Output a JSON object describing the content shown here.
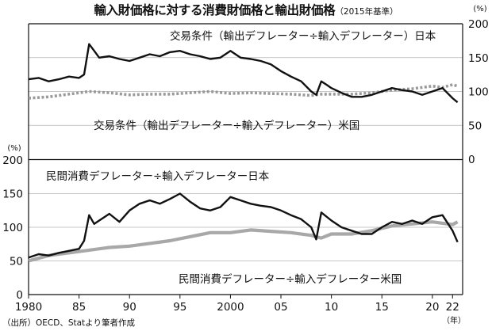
{
  "title": "輸入財価格に対する消費財価格と輸出財価格",
  "title_note": "（2015年基準）",
  "source": "（出所）OECD、Statより筆者作成",
  "x_unit": "（年）",
  "colors": {
    "japan": "#111111",
    "us_top": "#9a9a9a",
    "us_bottom": "#a8a8a8",
    "grid": "#b5b5b5"
  },
  "chart_data": [
    {
      "type": "line",
      "title": "",
      "ylabel": "(%)",
      "ylim": [
        0,
        200
      ],
      "yticks": [
        0,
        50,
        100,
        150,
        200
      ],
      "ytick_side": "right",
      "grid": true,
      "series": [
        {
          "name": "交易条件（輸出デフレーター÷輸入デフレーター）日本",
          "x": [
            1980,
            1981,
            1982,
            1983,
            1984,
            1985,
            1985.5,
            1986,
            1986.5,
            1987,
            1988,
            1989,
            1990,
            1991,
            1992,
            1993,
            1994,
            1995,
            1996,
            1997,
            1998,
            1999,
            2000,
            2001,
            2002,
            2003,
            2004,
            2005,
            2006,
            2007,
            2008,
            2008.5,
            2009,
            2009.5,
            2010,
            2011,
            2012,
            2013,
            2014,
            2015,
            2016,
            2017,
            2018,
            2019,
            2020,
            2021,
            2022,
            2022.5
          ],
          "values": [
            118,
            120,
            115,
            118,
            122,
            120,
            125,
            170,
            160,
            150,
            152,
            148,
            145,
            150,
            155,
            152,
            158,
            160,
            155,
            152,
            148,
            150,
            160,
            150,
            148,
            145,
            140,
            130,
            122,
            115,
            100,
            95,
            115,
            110,
            105,
            98,
            92,
            92,
            95,
            100,
            105,
            102,
            100,
            95,
            100,
            105,
            90,
            84
          ]
        },
        {
          "name": "交易条件（輸出デフレーター÷輸入デフレーター）米国",
          "x": [
            1980,
            1982,
            1984,
            1986,
            1988,
            1990,
            1992,
            1994,
            1996,
            1998,
            2000,
            2002,
            2004,
            2006,
            2008,
            2009,
            2010,
            2012,
            2014,
            2016,
            2018,
            2020,
            2021,
            2022,
            2022.5
          ],
          "values": [
            90,
            92,
            96,
            100,
            98,
            95,
            96,
            96,
            98,
            100,
            97,
            98,
            97,
            96,
            94,
            96,
            96,
            96,
            98,
            102,
            104,
            108,
            106,
            110,
            108
          ]
        }
      ]
    },
    {
      "type": "line",
      "title": "",
      "ylabel": "(%)",
      "ylim": [
        0,
        200
      ],
      "yticks": [
        0,
        50,
        100,
        150,
        200
      ],
      "ytick_side": "left",
      "x_ticks": [
        "1980",
        "85",
        "90",
        "95",
        "2000",
        "05",
        "10",
        "15",
        "20",
        "22"
      ],
      "x_tick_years": [
        1980,
        1985,
        1990,
        1995,
        2000,
        2005,
        2010,
        2015,
        2020,
        2022
      ],
      "grid": true,
      "series": [
        {
          "name": "民間消費デフレーター÷輸入デフレーター日本",
          "x": [
            1980,
            1981,
            1982,
            1983,
            1984,
            1985,
            1985.5,
            1986,
            1986.5,
            1987,
            1988,
            1989,
            1990,
            1991,
            1992,
            1993,
            1994,
            1995,
            1996,
            1997,
            1998,
            1999,
            2000,
            2001,
            2002,
            2003,
            2004,
            2005,
            2006,
            2007,
            2008,
            2008.5,
            2009,
            2010,
            2011,
            2012,
            2013,
            2014,
            2015,
            2016,
            2017,
            2018,
            2019,
            2020,
            2021,
            2022,
            2022.5
          ],
          "values": [
            55,
            60,
            58,
            62,
            65,
            68,
            80,
            118,
            105,
            110,
            120,
            108,
            125,
            135,
            140,
            135,
            142,
            150,
            138,
            128,
            125,
            130,
            145,
            140,
            135,
            132,
            130,
            125,
            118,
            112,
            100,
            82,
            122,
            110,
            100,
            95,
            90,
            90,
            100,
            108,
            105,
            110,
            105,
            115,
            118,
            95,
            78
          ]
        },
        {
          "name": "民間消費デフレーター÷輸入デフレーター米国",
          "x": [
            1980,
            1982,
            1984,
            1986,
            1988,
            1990,
            1992,
            1994,
            1996,
            1998,
            2000,
            2002,
            2004,
            2006,
            2008,
            2009,
            2010,
            2012,
            2014,
            2016,
            2018,
            2020,
            2021,
            2022,
            2022.5
          ],
          "values": [
            50,
            58,
            62,
            66,
            70,
            72,
            76,
            80,
            86,
            92,
            92,
            96,
            94,
            92,
            88,
            84,
            90,
            90,
            95,
            102,
            105,
            108,
            106,
            104,
            108
          ]
        }
      ]
    }
  ]
}
